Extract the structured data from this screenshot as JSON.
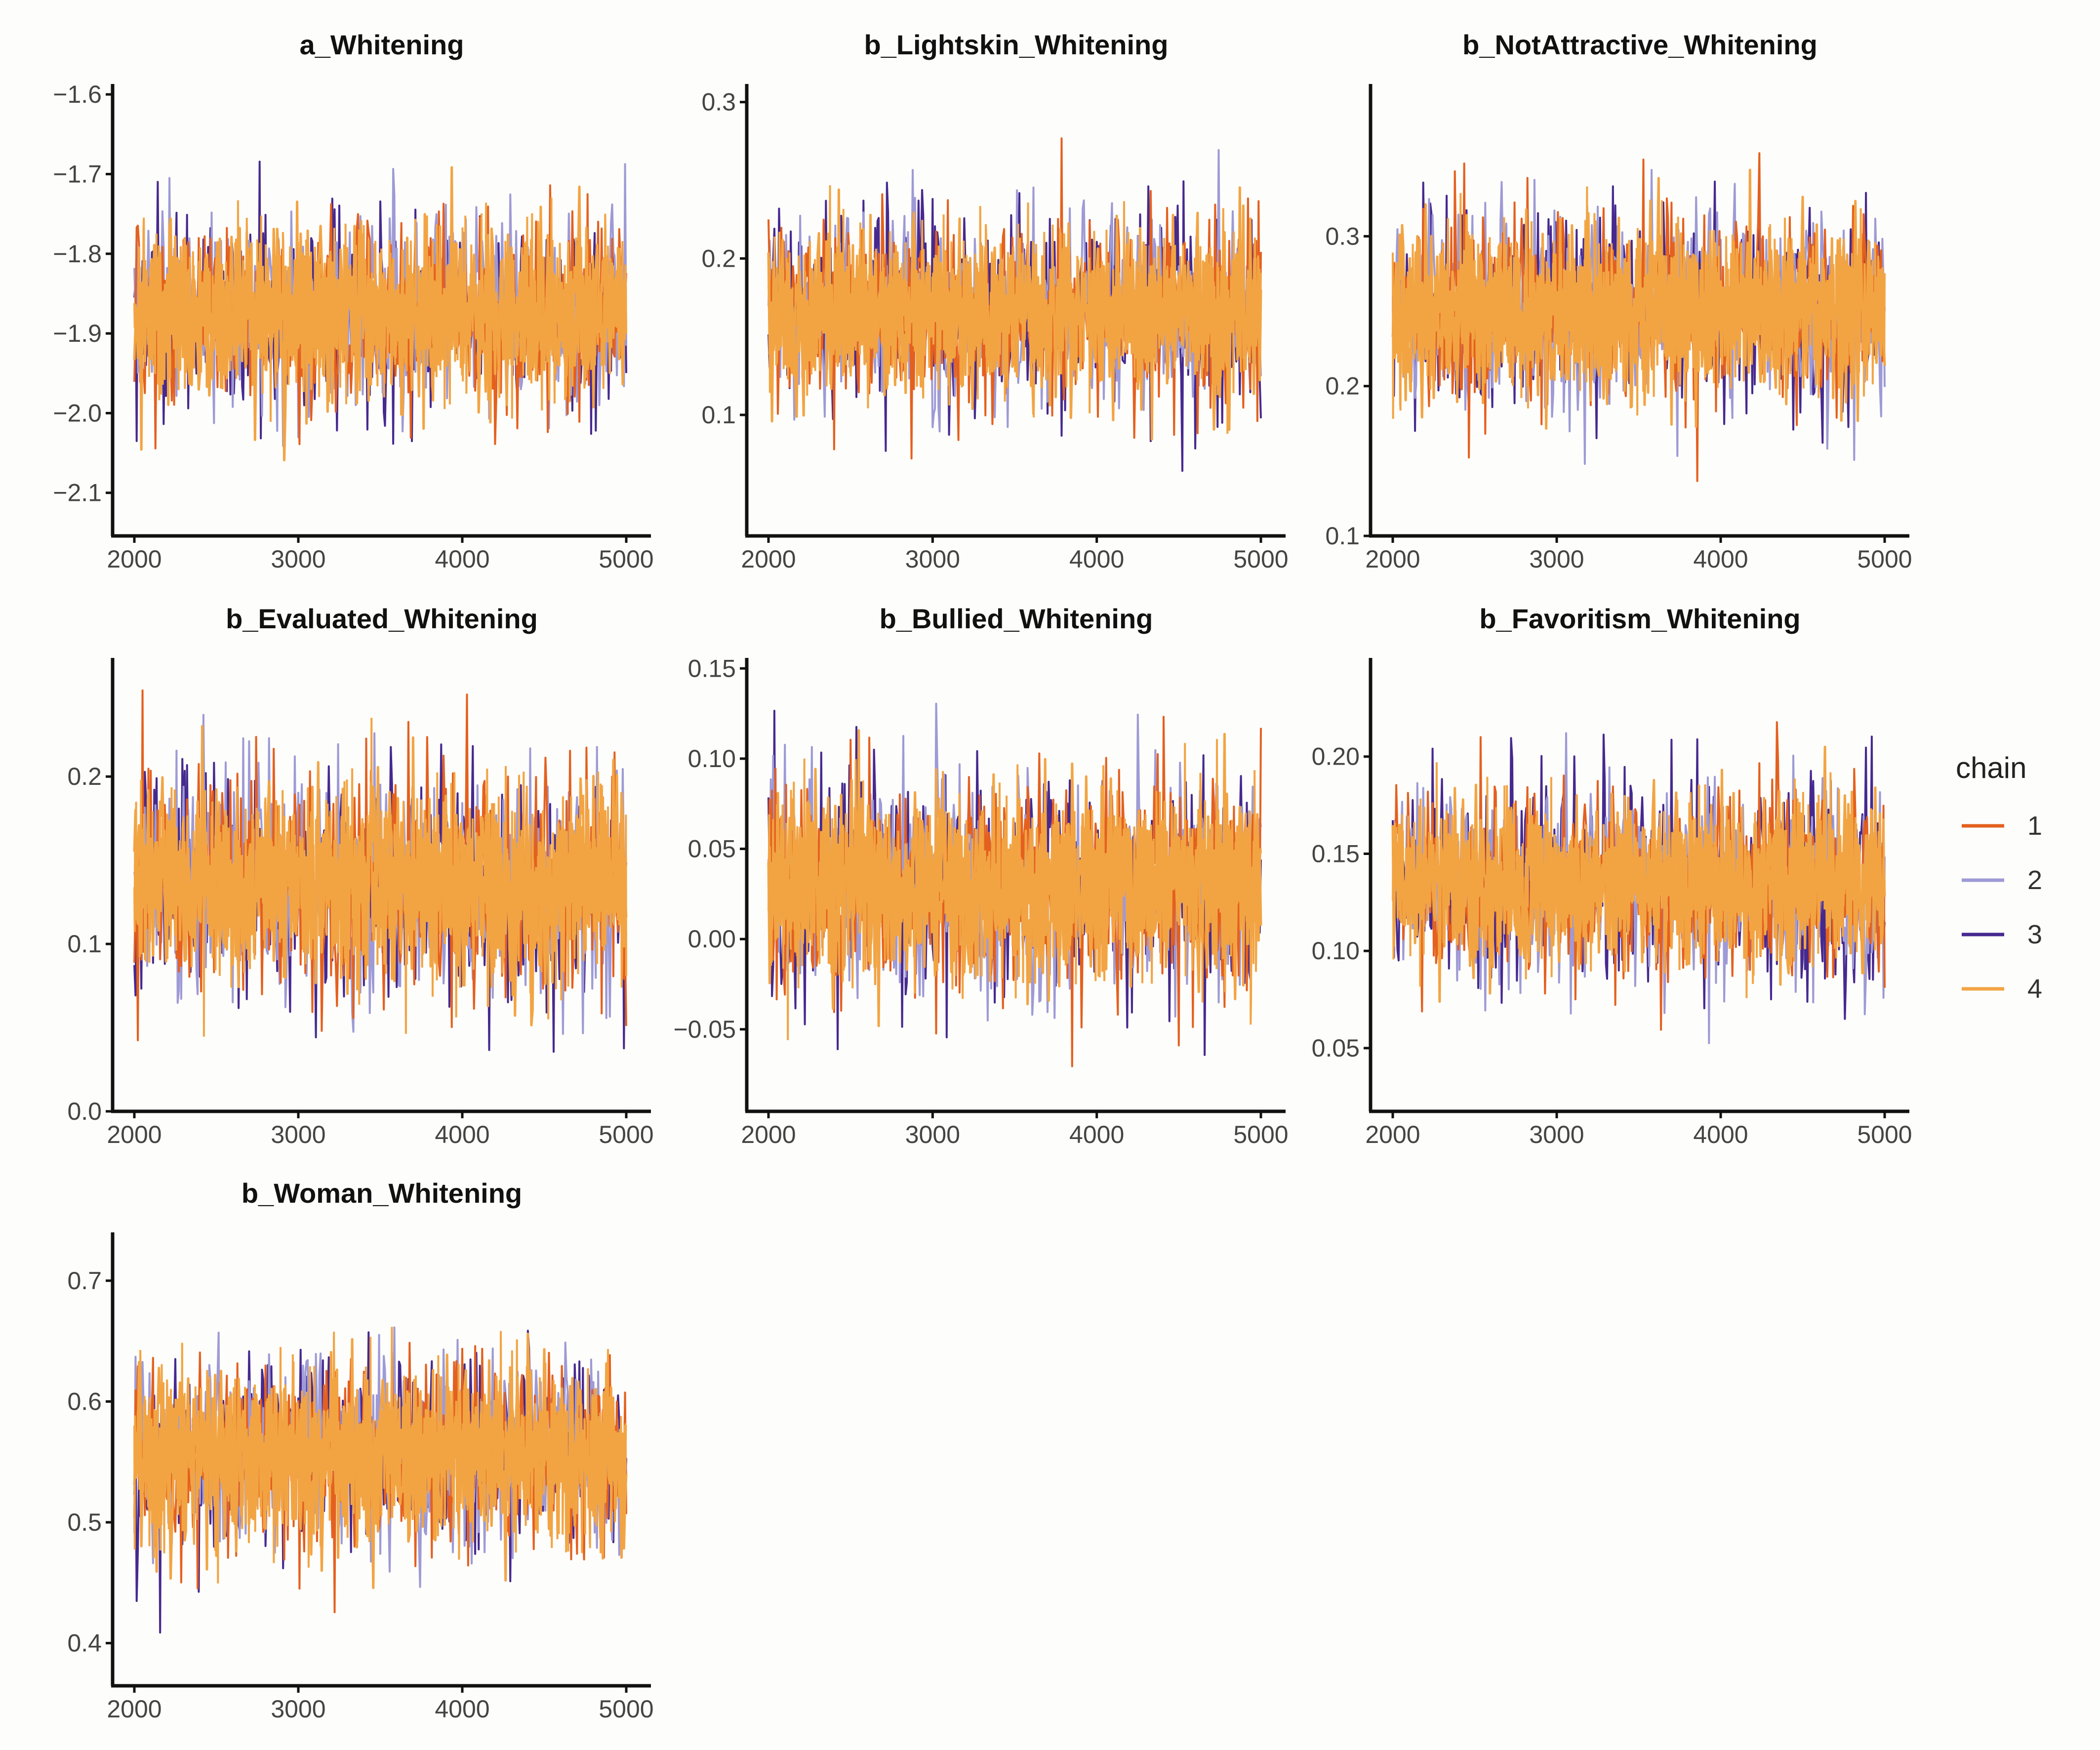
{
  "figure": {
    "legend_title": "chain",
    "legend_position": "right",
    "chain_colors": {
      "1": "#e4601e",
      "2": "#9e9ad6",
      "3": "#46298f",
      "4": "#f2a443"
    }
  },
  "chart_data": [
    {
      "type": "line",
      "title": "a_Whitening",
      "xlabel": "",
      "ylabel": "",
      "xlim": [
        2000,
        5000
      ],
      "ylim": [
        -2.12,
        -1.59
      ],
      "xticks": [
        2000,
        3000,
        4000,
        5000
      ],
      "yticks": [
        -1.6,
        -1.7,
        -1.8,
        -1.9,
        -2.0,
        -2.1
      ],
      "ytick_labels": [
        "−1.6",
        "−1.7",
        "−1.8",
        "−1.9",
        "−2.0",
        "−2.1"
      ],
      "series_center": -1.875,
      "series_band": [
        -1.98,
        -1.76
      ],
      "series_extremes": {
        "max": -1.62,
        "min": -2.11
      },
      "series": [
        {
          "chain": "1",
          "values": [
            -1.88,
            -1.86
          ]
        },
        {
          "chain": "2",
          "values": [
            -1.88,
            -1.86
          ]
        },
        {
          "chain": "3",
          "values": [
            -1.88,
            -1.86
          ]
        },
        {
          "chain": "4",
          "values": [
            -1.88,
            -1.86
          ]
        }
      ]
    },
    {
      "type": "line",
      "title": "b_Lightskin_Whitening",
      "xlabel": "",
      "ylabel": "",
      "xlim": [
        2000,
        5000
      ],
      "ylim": [
        0.04,
        0.31
      ],
      "xticks": [
        2000,
        3000,
        4000,
        5000
      ],
      "yticks": [
        0.3,
        0.2,
        0.1
      ],
      "ytick_labels": [
        "0.3",
        "0.2",
        "0.1"
      ],
      "series_center": 0.165,
      "series_band": [
        0.11,
        0.22
      ],
      "series_extremes": {
        "max": 0.295,
        "min": 0.052
      },
      "series": [
        {
          "chain": "1",
          "values": [
            0.16,
            0.17
          ]
        },
        {
          "chain": "2",
          "values": [
            0.16,
            0.17
          ]
        },
        {
          "chain": "3",
          "values": [
            0.16,
            0.17
          ]
        },
        {
          "chain": "4",
          "values": [
            0.16,
            0.17
          ]
        }
      ]
    },
    {
      "type": "line",
      "title": "b_NotAttractive_Whitening",
      "xlabel": "",
      "ylabel": "",
      "xlim": [
        2000,
        5000
      ],
      "ylim": [
        0.1,
        0.4
      ],
      "xticks": [
        2000,
        3000,
        4000,
        5000
      ],
      "yticks": [
        0.3,
        0.2,
        0.1
      ],
      "ytick_labels": [
        "0.3",
        "0.2",
        "0.1"
      ],
      "series_center": 0.25,
      "series_band": [
        0.19,
        0.31
      ],
      "series_extremes": {
        "max": 0.385,
        "min": 0.115
      },
      "series": [
        {
          "chain": "1",
          "values": [
            0.25,
            0.25
          ]
        },
        {
          "chain": "2",
          "values": [
            0.25,
            0.25
          ]
        },
        {
          "chain": "3",
          "values": [
            0.25,
            0.25
          ]
        },
        {
          "chain": "4",
          "values": [
            0.25,
            0.25
          ]
        }
      ]
    },
    {
      "type": "line",
      "title": "b_Evaluated_Whitening",
      "xlabel": "",
      "ylabel": "",
      "xlim": [
        2000,
        5000
      ],
      "ylim": [
        0.0,
        0.27
      ],
      "xticks": [
        2000,
        3000,
        4000,
        5000
      ],
      "yticks": [
        0.2,
        0.1,
        0.0
      ],
      "ytick_labels": [
        "0.2",
        "0.1",
        "0.0"
      ],
      "series_center": 0.135,
      "series_band": [
        0.075,
        0.195
      ],
      "series_extremes": {
        "max": 0.26,
        "min": 0.01
      },
      "series": [
        {
          "chain": "1",
          "values": [
            0.13,
            0.14
          ]
        },
        {
          "chain": "2",
          "values": [
            0.13,
            0.14
          ]
        },
        {
          "chain": "3",
          "values": [
            0.13,
            0.14
          ]
        },
        {
          "chain": "4",
          "values": [
            0.13,
            0.14
          ]
        }
      ]
    },
    {
      "type": "line",
      "title": "b_Bullied_Whitening",
      "xlabel": "",
      "ylabel": "",
      "xlim": [
        2000,
        5000
      ],
      "ylim": [
        -0.09,
        0.155
      ],
      "xticks": [
        2000,
        3000,
        4000,
        5000
      ],
      "yticks": [
        0.15,
        0.1,
        0.05,
        0.0,
        -0.05
      ],
      "ytick_labels": [
        "0.15",
        "0.10",
        "0.05",
        "0.00",
        "−0.05"
      ],
      "series_center": 0.03,
      "series_band": [
        -0.025,
        0.085
      ],
      "series_extremes": {
        "max": 0.145,
        "min": -0.08
      },
      "series": [
        {
          "chain": "1",
          "values": [
            0.03,
            0.03
          ]
        },
        {
          "chain": "2",
          "values": [
            0.03,
            0.03
          ]
        },
        {
          "chain": "3",
          "values": [
            0.03,
            0.03
          ]
        },
        {
          "chain": "4",
          "values": [
            0.03,
            0.03
          ]
        }
      ]
    },
    {
      "type": "line",
      "title": "b_Favoritism_Whitening",
      "xlabel": "",
      "ylabel": "",
      "xlim": [
        2000,
        5000
      ],
      "ylim": [
        0.02,
        0.25
      ],
      "xticks": [
        2000,
        3000,
        4000,
        5000
      ],
      "yticks": [
        0.2,
        0.15,
        0.1,
        0.05
      ],
      "ytick_labels": [
        "0.20",
        "0.15",
        "0.10",
        "0.05"
      ],
      "series_center": 0.135,
      "series_band": [
        0.09,
        0.18
      ],
      "series_extremes": {
        "max": 0.238,
        "min": 0.03
      },
      "series": [
        {
          "chain": "1",
          "values": [
            0.135,
            0.135
          ]
        },
        {
          "chain": "2",
          "values": [
            0.135,
            0.135
          ]
        },
        {
          "chain": "3",
          "values": [
            0.135,
            0.135
          ]
        },
        {
          "chain": "4",
          "values": [
            0.135,
            0.135
          ]
        }
      ]
    },
    {
      "type": "line",
      "title": "b_Woman_Whitening",
      "xlabel": "",
      "ylabel": "",
      "xlim": [
        2000,
        5000
      ],
      "ylim": [
        0.37,
        0.74
      ],
      "xticks": [
        2000,
        3000,
        4000,
        5000
      ],
      "yticks": [
        0.7,
        0.6,
        0.5,
        0.4
      ],
      "ytick_labels": [
        "0.7",
        "0.6",
        "0.5",
        "0.4"
      ],
      "series_center": 0.555,
      "series_band": [
        0.48,
        0.63
      ],
      "series_extremes": {
        "max": 0.722,
        "min": 0.39
      },
      "series": [
        {
          "chain": "1",
          "values": [
            0.55,
            0.56
          ]
        },
        {
          "chain": "2",
          "values": [
            0.55,
            0.56
          ]
        },
        {
          "chain": "3",
          "values": [
            0.55,
            0.56
          ]
        },
        {
          "chain": "4",
          "values": [
            0.55,
            0.56
          ]
        }
      ]
    }
  ]
}
